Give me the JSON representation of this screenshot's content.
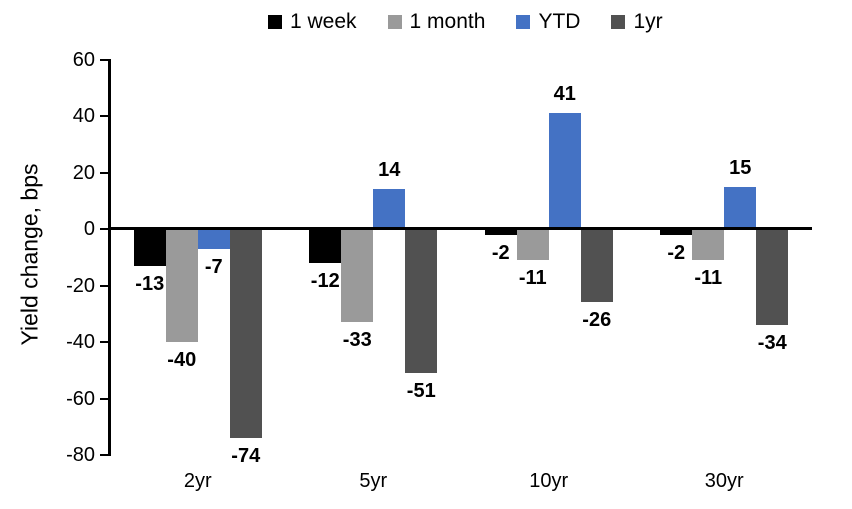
{
  "chart_data": {
    "type": "bar",
    "title": "",
    "xlabel": "",
    "ylabel": "Yield change, bps",
    "categories": [
      "2yr",
      "5yr",
      "10yr",
      "30yr"
    ],
    "series": [
      {
        "name": "1 week",
        "color": "#000000",
        "values": [
          -13,
          -12,
          -2,
          -2
        ]
      },
      {
        "name": "1 month",
        "color": "#9A9A9A",
        "values": [
          -40,
          -33,
          -11,
          -11
        ]
      },
      {
        "name": "YTD",
        "color": "#4472C4",
        "values": [
          -7,
          14,
          41,
          15
        ]
      },
      {
        "name": "1yr",
        "color": "#515151",
        "values": [
          -74,
          -51,
          -26,
          -34
        ]
      }
    ],
    "yticks": [
      60,
      40,
      20,
      0,
      -20,
      -40,
      -60,
      -80
    ],
    "ylim": [
      -80,
      60
    ],
    "ytick_step": 20,
    "legend_position": "top",
    "grid": false,
    "data_labels": true,
    "accent_color": "#4472C4"
  }
}
